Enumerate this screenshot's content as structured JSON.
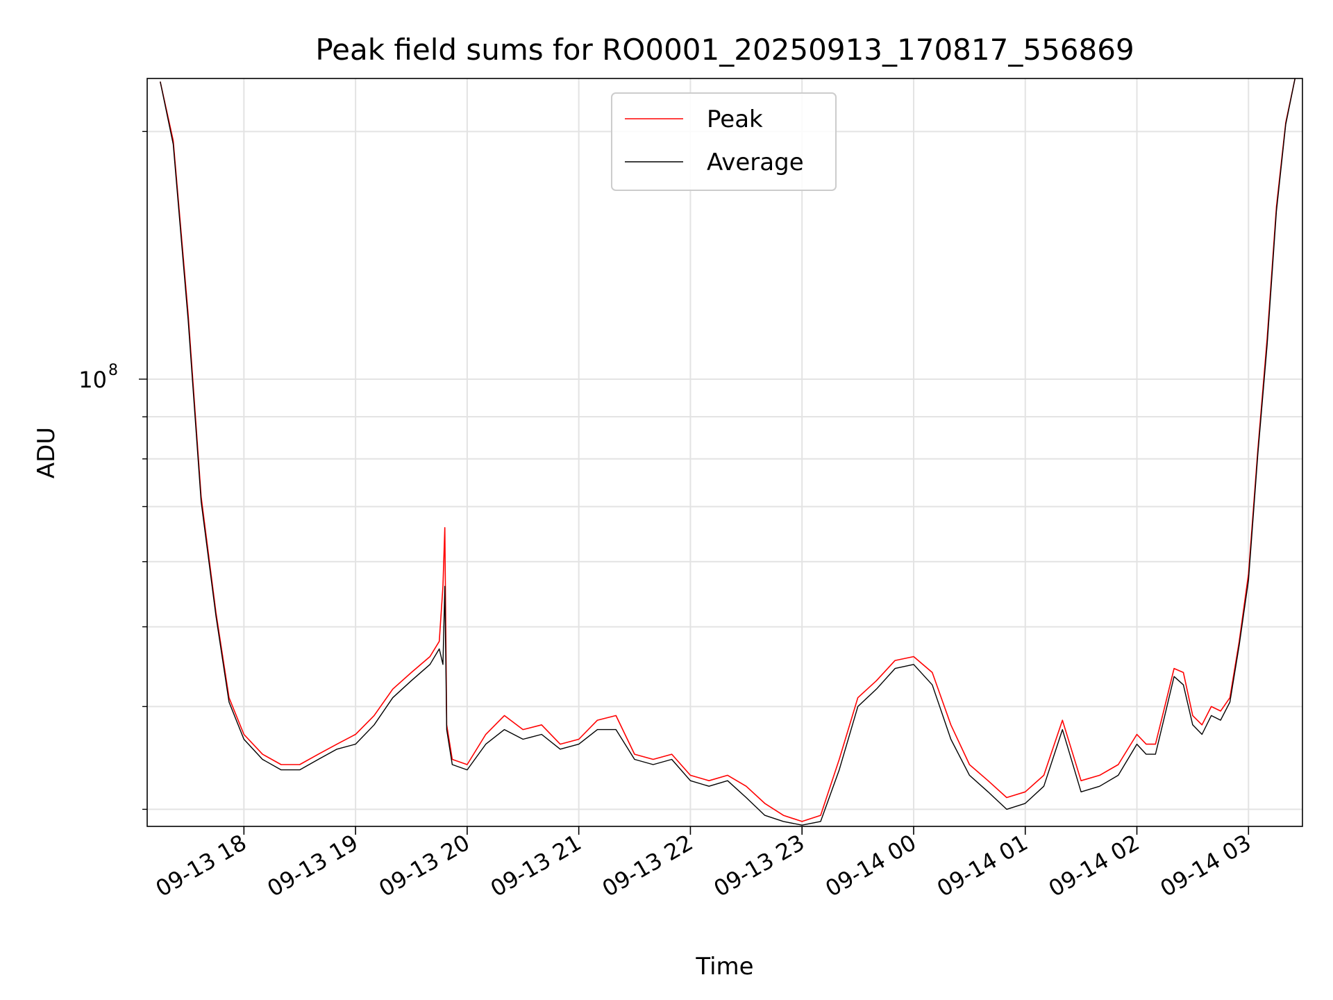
{
  "chart_data": {
    "type": "line",
    "title": "Peak field sums for RO0001_20250913_170817_556869",
    "xlabel": "Time",
    "ylabel": "ADU",
    "y_scale": "log",
    "grid": true,
    "legend_position": "upper center",
    "x_range": [
      "2025-09-13T17:08:00",
      "2025-09-14T03:29:00"
    ],
    "ylim": [
      28600000,
      232000000
    ],
    "x_ticks": [
      "2025-09-13T18:00",
      "2025-09-13T19:00",
      "2025-09-13T20:00",
      "2025-09-13T21:00",
      "2025-09-13T22:00",
      "2025-09-13T23:00",
      "2025-09-14T00:00",
      "2025-09-14T01:00",
      "2025-09-14T02:00",
      "2025-09-14T03:00"
    ],
    "x_tick_labels": [
      "09-13 18",
      "09-13 19",
      "09-13 20",
      "09-13 21",
      "09-13 22",
      "09-13 23",
      "09-14 00",
      "09-14 01",
      "09-14 02",
      "09-14 03"
    ],
    "y_ticks": [
      100000000
    ],
    "y_tick_labels": [
      "10",
      "8"
    ],
    "colors": {
      "Peak": "#ff0000",
      "Average": "#000000"
    },
    "x": [
      "2025-09-13T17:15",
      "2025-09-13T17:22",
      "2025-09-13T17:30",
      "2025-09-13T17:37",
      "2025-09-13T17:45",
      "2025-09-13T17:52",
      "2025-09-13T18:00",
      "2025-09-13T18:10",
      "2025-09-13T18:20",
      "2025-09-13T18:30",
      "2025-09-13T18:40",
      "2025-09-13T18:50",
      "2025-09-13T19:00",
      "2025-09-13T19:10",
      "2025-09-13T19:20",
      "2025-09-13T19:30",
      "2025-09-13T19:40",
      "2025-09-13T19:45",
      "2025-09-13T19:47",
      "2025-09-13T19:48",
      "2025-09-13T19:49",
      "2025-09-13T19:52",
      "2025-09-13T20:00",
      "2025-09-13T20:10",
      "2025-09-13T20:20",
      "2025-09-13T20:30",
      "2025-09-13T20:40",
      "2025-09-13T20:50",
      "2025-09-13T21:00",
      "2025-09-13T21:10",
      "2025-09-13T21:20",
      "2025-09-13T21:30",
      "2025-09-13T21:40",
      "2025-09-13T21:50",
      "2025-09-13T22:00",
      "2025-09-13T22:10",
      "2025-09-13T22:20",
      "2025-09-13T22:30",
      "2025-09-13T22:40",
      "2025-09-13T22:50",
      "2025-09-13T23:00",
      "2025-09-13T23:10",
      "2025-09-13T23:20",
      "2025-09-13T23:30",
      "2025-09-13T23:40",
      "2025-09-13T23:50",
      "2025-09-14T00:00",
      "2025-09-14T00:10",
      "2025-09-14T00:20",
      "2025-09-14T00:30",
      "2025-09-14T00:40",
      "2025-09-14T00:50",
      "2025-09-14T01:00",
      "2025-09-14T01:10",
      "2025-09-14T01:20",
      "2025-09-14T01:30",
      "2025-09-14T01:40",
      "2025-09-14T01:50",
      "2025-09-14T02:00",
      "2025-09-14T02:05",
      "2025-09-14T02:10",
      "2025-09-14T02:15",
      "2025-09-14T02:20",
      "2025-09-14T02:25",
      "2025-09-14T02:30",
      "2025-09-14T02:35",
      "2025-09-14T02:40",
      "2025-09-14T02:45",
      "2025-09-14T02:50",
      "2025-09-14T02:55",
      "2025-09-14T03:00",
      "2025-09-14T03:05",
      "2025-09-14T03:10",
      "2025-09-14T03:15",
      "2025-09-14T03:20",
      "2025-09-14T03:25"
    ],
    "series": [
      {
        "name": "Peak",
        "values": [
          230000000,
          195000000,
          120000000,
          72000000,
          52000000,
          41000000,
          37000000,
          35000000,
          34000000,
          34000000,
          35000000,
          36000000,
          37000000,
          39000000,
          42000000,
          44000000,
          46000000,
          48000000,
          56000000,
          66000000,
          38000000,
          34500000,
          34000000,
          37000000,
          39000000,
          37500000,
          38000000,
          36000000,
          36500000,
          38500000,
          39000000,
          35000000,
          34500000,
          35000000,
          33000000,
          32500000,
          33000000,
          32000000,
          30500000,
          29500000,
          29000000,
          29500000,
          34500000,
          41000000,
          43000000,
          45500000,
          46000000,
          44000000,
          38000000,
          34000000,
          32500000,
          31000000,
          31500000,
          33000000,
          38500000,
          32500000,
          33000000,
          34000000,
          37000000,
          36000000,
          36000000,
          40000000,
          44500000,
          44000000,
          39000000,
          38000000,
          40000000,
          39500000,
          41000000,
          48000000,
          58000000,
          82000000,
          112000000,
          162000000,
          205000000,
          232000000
        ]
      },
      {
        "name": "Average",
        "values": [
          230000000,
          193000000,
          118000000,
          71000000,
          51500000,
          40500000,
          36500000,
          34500000,
          33500000,
          33500000,
          34500000,
          35500000,
          36000000,
          38000000,
          41000000,
          43000000,
          45000000,
          47000000,
          45000000,
          56000000,
          37500000,
          34000000,
          33500000,
          36000000,
          37500000,
          36500000,
          37000000,
          35500000,
          36000000,
          37500000,
          37500000,
          34500000,
          34000000,
          34500000,
          32500000,
          32000000,
          32500000,
          31000000,
          29500000,
          29000000,
          28700000,
          29000000,
          33500000,
          40000000,
          42000000,
          44500000,
          45000000,
          42500000,
          36500000,
          33000000,
          31500000,
          30000000,
          30500000,
          32000000,
          37500000,
          31500000,
          32000000,
          33000000,
          36000000,
          35000000,
          35000000,
          39000000,
          43500000,
          42500000,
          38000000,
          37000000,
          39000000,
          38500000,
          40500000,
          47500000,
          57000000,
          81000000,
          110000000,
          160000000,
          204000000,
          232000000
        ]
      }
    ]
  }
}
